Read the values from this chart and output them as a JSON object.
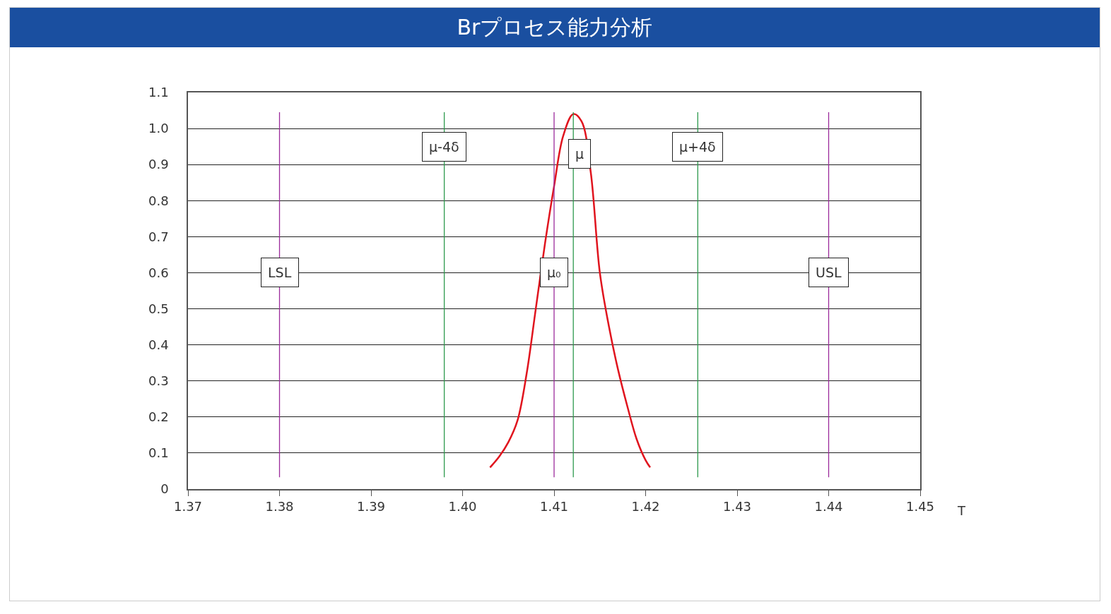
{
  "chart_data": {
    "type": "line",
    "title": "Brプロセス能力分析",
    "xlabel": "T",
    "series": [
      {
        "color": "#e0141e",
        "x": [
          1.403,
          1.404,
          1.405,
          1.406,
          1.407,
          1.408,
          1.409,
          1.41,
          1.411,
          1.4121,
          1.413,
          1.414,
          1.415,
          1.416,
          1.417,
          1.418,
          1.419,
          1.42,
          1.4205
        ],
        "values": [
          0.06,
          0.09,
          0.13,
          0.19,
          0.32,
          0.5,
          0.68,
          0.84,
          0.98,
          1.04,
          1.02,
          0.88,
          0.6,
          0.45,
          0.33,
          0.23,
          0.14,
          0.08,
          0.06
        ]
      }
    ],
    "xlim": [
      1.37,
      1.45
    ],
    "xticks": [
      1.37,
      1.38,
      1.39,
      {
        "value": 1.4,
        "label": "1.40"
      },
      1.41,
      1.42,
      1.43,
      1.44,
      1.45
    ],
    "ylim": [
      0,
      1.1
    ],
    "yticks": [
      0,
      0.1,
      0.2,
      0.3,
      0.4,
      0.5,
      0.6,
      0.7,
      0.8,
      0.9,
      {
        "value": 1,
        "label": "1.0"
      },
      1.1
    ],
    "ref_lines": [
      {
        "axis": "x",
        "value": 1.38,
        "label": "LSL",
        "color": "#9b2a9b"
      },
      {
        "axis": "x",
        "value": 1.398,
        "label": "μ-4δ",
        "color": "#2e9a4e"
      },
      {
        "axis": "x",
        "value": 1.41,
        "label": "μ₀",
        "color": "#9b2a9b"
      },
      {
        "axis": "x",
        "value": 1.4121,
        "label": "μ",
        "color": "#2e9a4e"
      },
      {
        "axis": "x",
        "value": 1.4257,
        "label": "μ+4δ",
        "color": "#2e9a4e"
      },
      {
        "axis": "x",
        "value": 1.44,
        "label": "USL",
        "color": "#9b2a9b"
      }
    ],
    "grid": "y",
    "marker": "none",
    "line_style": "solid"
  }
}
